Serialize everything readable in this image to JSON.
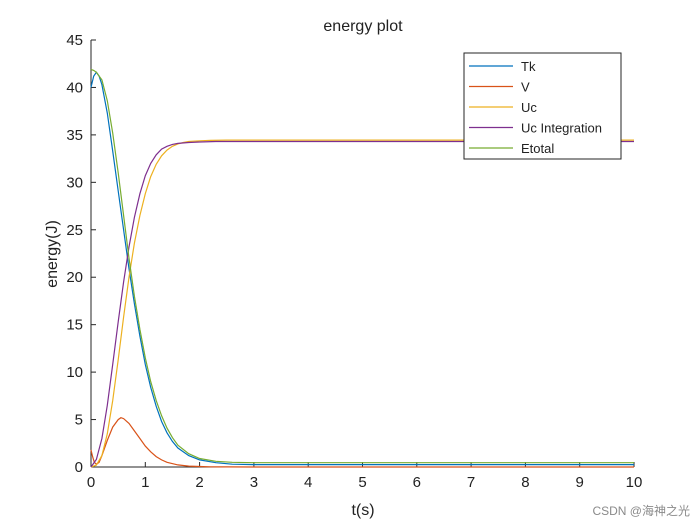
{
  "chart_data": {
    "type": "line",
    "title": "energy plot",
    "xlabel": "t(s)",
    "ylabel": "energy(J)",
    "xlim": [
      0,
      10
    ],
    "ylim": [
      0,
      45
    ],
    "x_ticks": [
      0,
      1,
      2,
      3,
      4,
      5,
      6,
      7,
      8,
      9,
      10
    ],
    "y_ticks": [
      0,
      5,
      10,
      15,
      20,
      25,
      30,
      35,
      40,
      45
    ],
    "grid": false,
    "legend": {
      "position": "top-right"
    },
    "series": [
      {
        "name": "Tk",
        "color": "#0072BD",
        "x": [
          0,
          0.05,
          0.1,
          0.15,
          0.2,
          0.3,
          0.4,
          0.5,
          0.6,
          0.7,
          0.8,
          0.9,
          1.0,
          1.1,
          1.2,
          1.3,
          1.4,
          1.5,
          1.6,
          1.8,
          2.0,
          2.3,
          2.6,
          3.0,
          4.0,
          6.0,
          8.0,
          10.0
        ],
        "y": [
          40.0,
          41.2,
          41.6,
          41.2,
          40.3,
          37.3,
          33.3,
          29.1,
          25.0,
          20.9,
          17.2,
          13.8,
          10.8,
          8.4,
          6.4,
          4.8,
          3.6,
          2.7,
          2.0,
          1.2,
          0.75,
          0.45,
          0.3,
          0.25,
          0.25,
          0.25,
          0.25,
          0.25
        ]
      },
      {
        "name": "V",
        "color": "#D95319",
        "x": [
          0,
          0.03,
          0.06,
          0.1,
          0.15,
          0.2,
          0.3,
          0.4,
          0.5,
          0.55,
          0.6,
          0.7,
          0.8,
          0.9,
          1.0,
          1.1,
          1.2,
          1.3,
          1.4,
          1.6,
          1.8,
          2.0,
          2.2,
          2.5,
          3.0,
          4.0,
          10.0
        ],
        "y": [
          1.8,
          1.1,
          0.5,
          0.3,
          0.5,
          1.2,
          2.8,
          4.2,
          5.0,
          5.2,
          5.1,
          4.6,
          3.8,
          3.0,
          2.2,
          1.6,
          1.1,
          0.75,
          0.5,
          0.22,
          0.1,
          0.05,
          0.02,
          0.01,
          0.0,
          0.0,
          0.0
        ]
      },
      {
        "name": "Uc",
        "color": "#EDB120",
        "x": [
          0,
          0.1,
          0.2,
          0.3,
          0.4,
          0.5,
          0.6,
          0.7,
          0.8,
          0.9,
          1.0,
          1.1,
          1.2,
          1.3,
          1.4,
          1.5,
          1.6,
          1.7,
          1.8,
          2.0,
          2.2,
          2.5,
          3.0,
          4.0,
          6.0,
          8.0,
          10.0
        ],
        "y": [
          0.0,
          0.2,
          1.2,
          3.5,
          7.0,
          11.3,
          15.8,
          20.0,
          23.6,
          26.5,
          28.8,
          30.6,
          31.9,
          32.8,
          33.4,
          33.8,
          34.05,
          34.2,
          34.3,
          34.38,
          34.42,
          34.45,
          34.45,
          34.45,
          34.45,
          34.45,
          34.45
        ]
      },
      {
        "name": "Uc Integration",
        "color": "#7E2F8E",
        "x": [
          0,
          0.1,
          0.2,
          0.3,
          0.4,
          0.5,
          0.6,
          0.7,
          0.8,
          0.9,
          1.0,
          1.1,
          1.2,
          1.3,
          1.4,
          1.5,
          1.6,
          1.8,
          2.0,
          2.3,
          2.6,
          3.0,
          4.0,
          6.0,
          8.0,
          10.0
        ],
        "y": [
          0.0,
          0.8,
          3.0,
          6.5,
          10.8,
          15.3,
          19.5,
          23.2,
          26.3,
          28.8,
          30.7,
          32.0,
          32.9,
          33.5,
          33.8,
          34.0,
          34.1,
          34.2,
          34.25,
          34.3,
          34.3,
          34.3,
          34.3,
          34.3,
          34.3,
          34.3
        ]
      },
      {
        "name": "Etotal",
        "color": "#77AC30",
        "x": [
          0,
          0.05,
          0.1,
          0.2,
          0.3,
          0.4,
          0.5,
          0.6,
          0.7,
          0.8,
          0.9,
          1.0,
          1.1,
          1.2,
          1.3,
          1.4,
          1.5,
          1.6,
          1.8,
          2.0,
          2.3,
          2.6,
          3.0,
          4.0,
          6.0,
          8.0,
          10.0
        ],
        "y": [
          41.9,
          41.8,
          41.6,
          40.8,
          38.6,
          35.2,
          31.0,
          26.5,
          22.0,
          18.0,
          14.5,
          11.5,
          9.0,
          7.0,
          5.4,
          4.1,
          3.1,
          2.3,
          1.4,
          0.9,
          0.6,
          0.5,
          0.45,
          0.45,
          0.45,
          0.45,
          0.45
        ]
      }
    ]
  },
  "watermark": "CSDN @海神之光"
}
